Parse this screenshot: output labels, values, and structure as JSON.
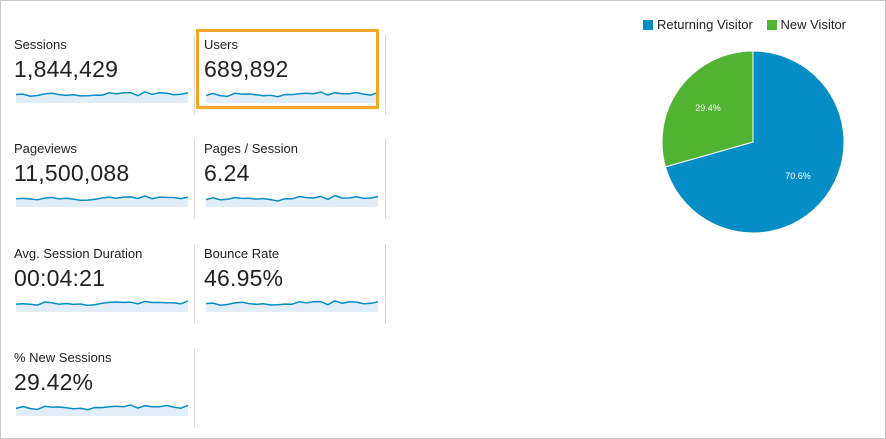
{
  "metrics": [
    {
      "label": "Sessions",
      "value": "1,844,429"
    },
    {
      "label": "Users",
      "value": "689,892"
    },
    {
      "label": "Pageviews",
      "value": "11,500,088"
    },
    {
      "label": "Pages / Session",
      "value": "6.24"
    },
    {
      "label": "Avg. Session Duration",
      "value": "00:04:21"
    },
    {
      "label": "Bounce Rate",
      "value": "46.95%"
    },
    {
      "label": "% New Sessions",
      "value": "29.42%"
    }
  ],
  "chart_data": {
    "type": "pie",
    "series": [
      {
        "name": "Returning Visitor",
        "value": 70.6,
        "label": "70.6%",
        "color": "#058dc7"
      },
      {
        "name": "New Visitor",
        "value": 29.4,
        "label": "29.4%",
        "color": "#50b432"
      }
    ],
    "legend_position": "top"
  },
  "colors": {
    "sparkline": "#058dc7",
    "sparkline_fill": "#e1eef7",
    "highlight": "#f5a623"
  }
}
